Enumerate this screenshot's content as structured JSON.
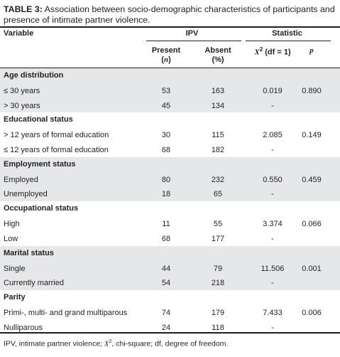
{
  "caption": {
    "label": "TABLE 3:",
    "text": "Association between socio-demographic characteristics of participants and presence of intimate partner violence."
  },
  "header": {
    "variable": "Variable",
    "ipv": "IPV",
    "statistic": "Statistic",
    "present_line1": "Present",
    "present_line2_open": "(",
    "present_line2_n": "n",
    "present_line2_close": ")",
    "absent_line1": "Absent",
    "absent_line2": "(%)",
    "chi_symbol": "X",
    "chi_sup": "2",
    "chi_rest": " (df = 1)",
    "p": "p"
  },
  "groups": [
    {
      "title": "Age distribution",
      "rows": [
        {
          "label": "≤ 30 years",
          "present": "53",
          "absent": "163",
          "chi": "0.019",
          "p": "0.890"
        },
        {
          "label": "> 30 years",
          "present": "45",
          "absent": "134",
          "chi": "-",
          "p": ""
        }
      ]
    },
    {
      "title": "Educational status",
      "rows": [
        {
          "label": "> 12 years of formal education",
          "present": "30",
          "absent": "115",
          "chi": "2.085",
          "p": "0.149"
        },
        {
          "label": "≤ 12 years of formal education",
          "present": "68",
          "absent": "182",
          "chi": "-",
          "p": ""
        }
      ]
    },
    {
      "title": "Employment status",
      "rows": [
        {
          "label": "Employed",
          "present": "80",
          "absent": "232",
          "chi": "0.550",
          "p": "0.459"
        },
        {
          "label": "Unemployed",
          "present": "18",
          "absent": "65",
          "chi": "-",
          "p": ""
        }
      ]
    },
    {
      "title": "Occupational status",
      "rows": [
        {
          "label": "High",
          "present": "11",
          "absent": "55",
          "chi": "3.374",
          "p": "0.066"
        },
        {
          "label": "Low",
          "present": "68",
          "absent": "177",
          "chi": "-",
          "p": ""
        }
      ]
    },
    {
      "title": "Marital status",
      "rows": [
        {
          "label": "Single",
          "present": "44",
          "absent": "79",
          "chi": "11.506",
          "p": "0.001"
        },
        {
          "label": "Currently married",
          "present": "54",
          "absent": "218",
          "chi": "-",
          "p": ""
        }
      ]
    },
    {
      "title": "Parity",
      "rows": [
        {
          "label": "Primi-, multi- and grand multiparous",
          "present": "74",
          "absent": "179",
          "chi": "7.433",
          "p": "0.006"
        },
        {
          "label": "Nulliparous",
          "present": "24",
          "absent": "118",
          "chi": "-",
          "p": ""
        }
      ]
    }
  ],
  "footnote": {
    "part1": "IPV, intimate partner violence; ",
    "chi_symbol": "X",
    "chi_sup": "2",
    "part2": ", chi-square; df, degree of freedom."
  }
}
